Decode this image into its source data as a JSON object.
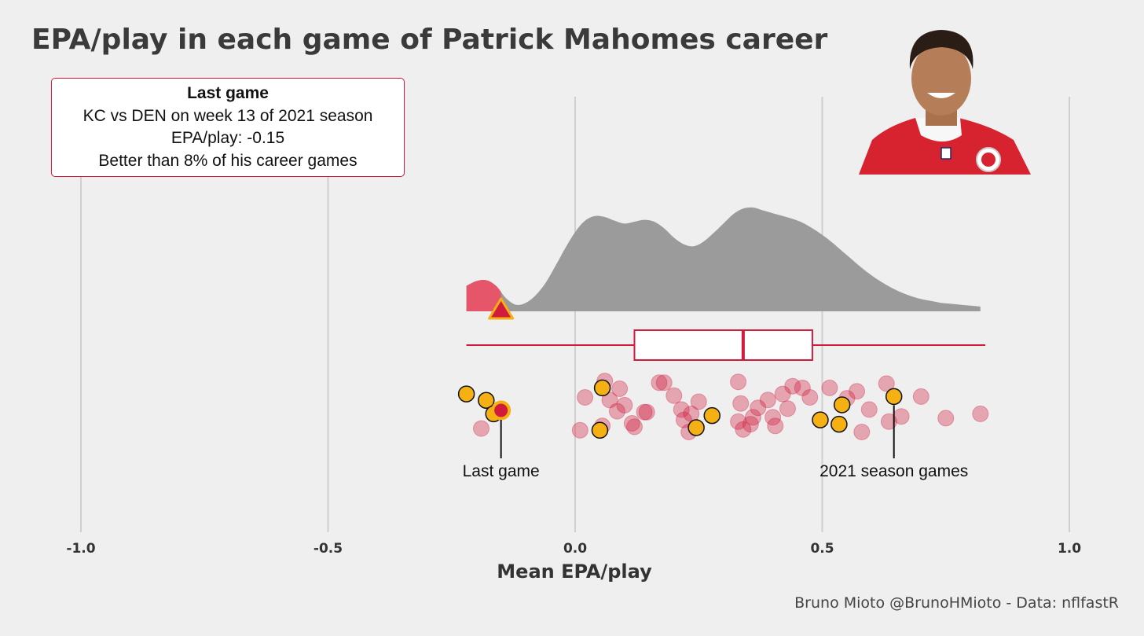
{
  "title": "EPA/play in each game of Patrick Mahomes career",
  "info_box": {
    "heading": "Last game",
    "matchup": "KC vs DEN on week 13 of 2021 season",
    "epa": "EPA/play: -0.15",
    "percentile": "Better than 8% of his career games"
  },
  "caption": "Bruno Mioto @BrunoHMioto - Data: nflfastR",
  "colors": {
    "accent": "#d21a3c",
    "highlight": "#f5b014",
    "density": "#9b9b9b",
    "background": "#efefef"
  },
  "chart_data": {
    "type": "scatter",
    "subtypes": [
      "density",
      "boxplot",
      "jittered points"
    ],
    "xlabel": "Mean EPA/play",
    "xlim": [
      -1.05,
      1.12
    ],
    "xticks": [
      -1.0,
      -0.5,
      0.0,
      0.5,
      1.0
    ],
    "xtick_labels": [
      "-1.0",
      "-0.5",
      "0.0",
      "0.5",
      "1.0"
    ],
    "grid": "vertical major gridlines",
    "density": {
      "x": [
        -0.22,
        -0.2,
        -0.18,
        -0.16,
        -0.14,
        -0.12,
        -0.1,
        -0.08,
        -0.06,
        -0.04,
        -0.02,
        0.0,
        0.02,
        0.04,
        0.06,
        0.08,
        0.1,
        0.12,
        0.14,
        0.16,
        0.18,
        0.2,
        0.22,
        0.24,
        0.26,
        0.28,
        0.3,
        0.32,
        0.34,
        0.36,
        0.38,
        0.4,
        0.42,
        0.44,
        0.46,
        0.48,
        0.5,
        0.52,
        0.54,
        0.56,
        0.58,
        0.6,
        0.62,
        0.64,
        0.66,
        0.68,
        0.7,
        0.72,
        0.74,
        0.76,
        0.78,
        0.8,
        0.82
      ],
      "y": [
        0.27,
        0.32,
        0.33,
        0.27,
        0.14,
        0.07,
        0.09,
        0.17,
        0.3,
        0.48,
        0.67,
        0.84,
        0.96,
        1.01,
        1.0,
        0.96,
        0.93,
        0.95,
        0.97,
        0.95,
        0.88,
        0.78,
        0.71,
        0.69,
        0.74,
        0.83,
        0.93,
        1.03,
        1.09,
        1.1,
        1.07,
        1.04,
        1.01,
        0.98,
        0.94,
        0.88,
        0.81,
        0.73,
        0.64,
        0.55,
        0.46,
        0.38,
        0.31,
        0.25,
        0.2,
        0.16,
        0.13,
        0.11,
        0.09,
        0.08,
        0.07,
        0.06,
        0.05
      ],
      "highlighted_below": -0.15
    },
    "boxplot": {
      "min": -0.22,
      "q1": 0.12,
      "median": 0.34,
      "q3": 0.48,
      "max": 0.83
    },
    "last_game": {
      "x": -0.15,
      "label": "Last game"
    },
    "series": [
      {
        "name": "2021 season games",
        "label": "2021 season games",
        "values": [
          {
            "x": -0.22,
            "y": 0.95
          },
          {
            "x": -0.18,
            "y": 0.58
          },
          {
            "x": -0.165,
            "y": -0.2
          },
          {
            "x": 0.055,
            "y": 1.3
          },
          {
            "x": 0.05,
            "y": -1.15
          },
          {
            "x": 0.277,
            "y": -0.3
          },
          {
            "x": 0.245,
            "y": -1.0
          },
          {
            "x": 0.496,
            "y": -0.55
          },
          {
            "x": 0.534,
            "y": -0.8
          },
          {
            "x": 0.54,
            "y": 0.32
          },
          {
            "x": 0.645,
            "y": 0.8
          }
        ]
      },
      {
        "name": "Career games",
        "values": [
          {
            "x": -0.19,
            "y": -1.05
          },
          {
            "x": 0.06,
            "y": 1.7
          },
          {
            "x": 0.02,
            "y": 0.75
          },
          {
            "x": 0.09,
            "y": 1.25
          },
          {
            "x": 0.07,
            "y": 0.6
          },
          {
            "x": 0.1,
            "y": 0.3
          },
          {
            "x": 0.085,
            "y": -0.05
          },
          {
            "x": 0.01,
            "y": -1.15
          },
          {
            "x": 0.055,
            "y": -0.9
          },
          {
            "x": 0.115,
            "y": -0.75
          },
          {
            "x": 0.12,
            "y": -0.95
          },
          {
            "x": 0.14,
            "y": -0.1
          },
          {
            "x": 0.145,
            "y": -0.1
          },
          {
            "x": 0.17,
            "y": 1.6
          },
          {
            "x": 0.18,
            "y": 1.6
          },
          {
            "x": 0.2,
            "y": 0.85
          },
          {
            "x": 0.215,
            "y": 0.05
          },
          {
            "x": 0.22,
            "y": -0.55
          },
          {
            "x": 0.235,
            "y": -0.2
          },
          {
            "x": 0.23,
            "y": -1.25
          },
          {
            "x": 0.25,
            "y": 0.5
          },
          {
            "x": 0.33,
            "y": 1.65
          },
          {
            "x": 0.335,
            "y": 0.4
          },
          {
            "x": 0.33,
            "y": -0.65
          },
          {
            "x": 0.34,
            "y": -1.1
          },
          {
            "x": 0.36,
            "y": -0.4
          },
          {
            "x": 0.355,
            "y": -0.8
          },
          {
            "x": 0.37,
            "y": 0.15
          },
          {
            "x": 0.39,
            "y": 0.6
          },
          {
            "x": 0.4,
            "y": -0.4
          },
          {
            "x": 0.405,
            "y": -0.9
          },
          {
            "x": 0.42,
            "y": 0.95
          },
          {
            "x": 0.43,
            "y": 0.1
          },
          {
            "x": 0.44,
            "y": 1.4
          },
          {
            "x": 0.46,
            "y": 1.3
          },
          {
            "x": 0.475,
            "y": 0.75
          },
          {
            "x": 0.515,
            "y": 1.3
          },
          {
            "x": 0.55,
            "y": 0.7
          },
          {
            "x": 0.57,
            "y": 1.1
          },
          {
            "x": 0.595,
            "y": 0.05
          },
          {
            "x": 0.58,
            "y": -1.25
          },
          {
            "x": 0.63,
            "y": 1.55
          },
          {
            "x": 0.635,
            "y": -0.65
          },
          {
            "x": 0.66,
            "y": -0.35
          },
          {
            "x": 0.7,
            "y": 0.8
          },
          {
            "x": 0.75,
            "y": -0.45
          },
          {
            "x": 0.82,
            "y": -0.2
          }
        ]
      }
    ]
  }
}
